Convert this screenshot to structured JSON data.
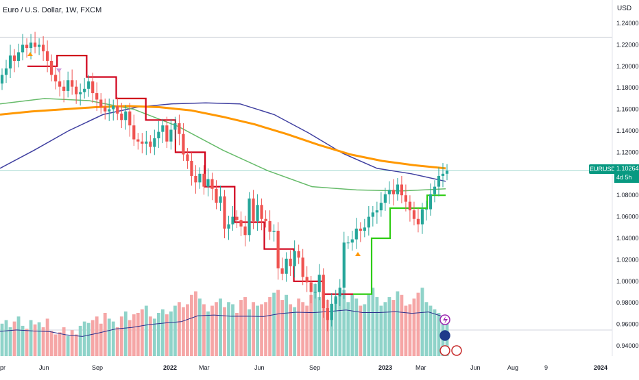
{
  "header": {
    "symbol_title": "Euro / U.S. Dollar, 1W, FXCM",
    "currency": "USD"
  },
  "last_price": {
    "symbol": "EURUSD",
    "value": "1.10264",
    "countdown": "4d 5h"
  },
  "colors": {
    "up": "#26a69a",
    "down": "#ef5350",
    "up_volume": "#8fd3c9",
    "down_volume": "#f5a6a6",
    "ma_orange": "#ff9800",
    "ma_navy": "#3f3fa0",
    "ma_green": "#66bb6a",
    "trail_red": "#d0021b",
    "trail_green": "#2ecc12",
    "price_line": "#089981"
  },
  "chart_data": {
    "type": "candlestick",
    "title": "Euro / U.S. Dollar, 1W, FXCM",
    "ylim": [
      0.93,
      1.245
    ],
    "y_ticks": [
      "1.24000",
      "1.22000",
      "1.20000",
      "1.18000",
      "1.16000",
      "1.14000",
      "1.12000",
      "1.10000",
      "1.08000",
      "1.06000",
      "1.04000",
      "1.02000",
      "1.00000",
      "0.98000",
      "0.96000",
      "0.94000"
    ],
    "x_ticks": [
      "pr",
      "Jun",
      "Sep",
      "2022",
      "Mar",
      "Jun",
      "Sep",
      "2023",
      "Mar",
      "Jun",
      "Aug",
      "9",
      "2024"
    ],
    "candles_close": [
      1.192,
      1.198,
      1.21,
      1.205,
      1.213,
      1.22,
      1.217,
      1.222,
      1.218,
      1.22,
      1.214,
      1.205,
      1.192,
      1.186,
      1.181,
      1.177,
      1.187,
      1.181,
      1.174,
      1.176,
      1.179,
      1.186,
      1.175,
      1.169,
      1.162,
      1.158,
      1.16,
      1.163,
      1.156,
      1.15,
      1.158,
      1.145,
      1.132,
      1.13,
      1.128,
      1.13,
      1.125,
      1.133,
      1.139,
      1.145,
      1.13,
      1.141,
      1.147,
      1.137,
      1.118,
      1.112,
      1.098,
      1.092,
      1.1,
      1.088,
      1.095,
      1.086,
      1.073,
      1.079,
      1.049,
      1.053,
      1.06,
      1.057,
      1.051,
      1.043,
      1.077,
      1.056,
      1.071,
      1.058,
      1.056,
      1.046,
      1.047,
      1.012,
      1.007,
      1.021,
      1.014,
      1.028,
      1.022,
      1.004,
      0.999,
      0.99,
      0.99,
      1.006,
      0.975,
      0.964,
      0.979,
      0.986,
      0.994,
      1.036,
      1.036,
      1.039,
      1.049,
      1.047,
      1.05,
      1.06,
      1.064,
      1.066,
      1.073,
      1.081,
      1.085,
      1.081,
      1.09,
      1.08,
      1.074,
      1.066,
      1.058,
      1.053,
      1.067,
      1.067,
      1.081,
      1.088,
      1.098,
      1.1,
      1.103
    ],
    "ma_orange_y": [
      1.155,
      1.158,
      1.16,
      1.162,
      1.163,
      1.162,
      1.159,
      1.153,
      1.146,
      1.137,
      1.127,
      1.118,
      1.112,
      1.108,
      1.105
    ],
    "ma_navy_y": [
      1.105,
      1.122,
      1.14,
      1.155,
      1.162,
      1.165,
      1.166,
      1.165,
      1.155,
      1.138,
      1.119,
      1.105,
      1.1,
      1.093
    ],
    "ma_green_y": [
      1.165,
      1.17,
      1.168,
      1.16,
      1.144,
      1.122,
      1.103,
      1.088,
      1.085,
      1.084,
      1.086
    ],
    "trail_red_y": [
      1.2,
      1.21,
      1.19,
      1.17,
      1.15,
      1.12,
      1.088,
      1.055,
      1.03,
      1.0,
      0.988
    ],
    "trail_green_y": [
      0.988,
      1.04,
      1.068,
      1.068,
      1.08
    ],
    "volume_relative": [
      0.45,
      0.5,
      0.4,
      0.48,
      0.55,
      0.42,
      0.38,
      0.5,
      0.44,
      0.47,
      0.4,
      0.52,
      0.35,
      0.3,
      0.33,
      0.4,
      0.28,
      0.36,
      0.3,
      0.42,
      0.48,
      0.46,
      0.5,
      0.55,
      0.45,
      0.6,
      0.52,
      0.48,
      0.4,
      0.55,
      0.62,
      0.5,
      0.58,
      0.6,
      0.65,
      0.7,
      0.55,
      0.52,
      0.6,
      0.65,
      0.58,
      0.62,
      0.7,
      0.75,
      0.68,
      0.72,
      0.85,
      0.9,
      0.8,
      0.72,
      0.62,
      0.7,
      0.75,
      0.8,
      0.68,
      0.75,
      0.72,
      0.6,
      0.78,
      0.82,
      0.65,
      0.75,
      0.7,
      0.72,
      0.75,
      0.82,
      0.88,
      0.92,
      0.78,
      0.85,
      0.72,
      0.68,
      0.8,
      0.75,
      0.7,
      0.85,
      1.0,
      0.82,
      0.9,
      0.78,
      0.72,
      0.8,
      0.88,
      0.92,
      0.75,
      0.85,
      0.8,
      0.7,
      0.72,
      0.85,
      0.95,
      0.82,
      0.7,
      0.75,
      0.82,
      0.78,
      0.9,
      0.85,
      0.7,
      0.72,
      0.8,
      0.88,
      0.95,
      0.75,
      0.7,
      0.65,
      0.6,
      0.55,
      0.5
    ],
    "grid": false,
    "legend": "none"
  }
}
